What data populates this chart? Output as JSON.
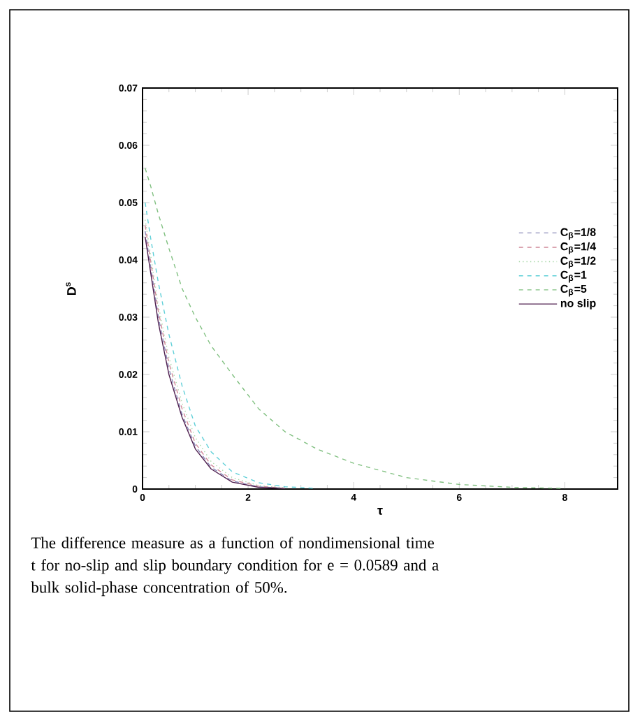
{
  "chart_data": {
    "type": "line",
    "xlabel": "τ",
    "ylabel": "D$^{s}$",
    "x": [
      0.05,
      0.15,
      0.3,
      0.5,
      0.75,
      1.0,
      1.3,
      1.7,
      2.2,
      2.7,
      3.3,
      4.0,
      5.0,
      6.0,
      7.0,
      8.0
    ],
    "series": [
      {
        "name": "C$_{β}$=1/8",
        "color": "#8a8ab8",
        "line_style": "dashed",
        "values": [
          0.045,
          0.039,
          0.03,
          0.021,
          0.013,
          0.0075,
          0.0038,
          0.0014,
          0.0004,
          0.0001,
          null,
          null,
          null,
          null,
          null,
          null
        ]
      },
      {
        "name": "C$_{β}$=1/4",
        "color": "#d08898",
        "line_style": "dashed",
        "values": [
          0.046,
          0.04,
          0.031,
          0.022,
          0.014,
          0.008,
          0.0042,
          0.0016,
          0.0005,
          0.0001,
          null,
          null,
          null,
          null,
          null,
          null
        ]
      },
      {
        "name": "C$_{β}$=1/2",
        "color": "#a8d8a8",
        "line_style": "dotted",
        "values": [
          0.047,
          0.041,
          0.032,
          0.023,
          0.015,
          0.009,
          0.0048,
          0.002,
          0.0006,
          0.0002,
          null,
          null,
          null,
          null,
          null,
          null
        ]
      },
      {
        "name": "C$_{β}$=1",
        "color": "#60d0d8",
        "line_style": "dashed",
        "values": [
          0.05,
          0.044,
          0.036,
          0.027,
          0.018,
          0.011,
          0.0065,
          0.003,
          0.0011,
          0.0004,
          0.0001,
          null,
          null,
          null,
          null,
          null
        ]
      },
      {
        "name": "C$_{β}$=5",
        "color": "#80c080",
        "line_style": "dashed",
        "values": [
          0.056,
          0.053,
          0.048,
          0.042,
          0.035,
          0.03,
          0.025,
          0.02,
          0.014,
          0.01,
          0.007,
          0.0045,
          0.002,
          0.0008,
          0.0003,
          0.0001
        ]
      },
      {
        "name": "no slip",
        "color": "#502050",
        "line_style": "solid",
        "values": [
          0.044,
          0.038,
          0.029,
          0.02,
          0.0125,
          0.007,
          0.0035,
          0.0012,
          0.0003,
          0.0001,
          null,
          null,
          null,
          null,
          null,
          null
        ]
      }
    ],
    "xlim": [
      0,
      9
    ],
    "ylim": [
      0,
      0.07
    ],
    "xticks": [
      0,
      2,
      4,
      6,
      8
    ],
    "yticks": [
      0,
      0.01,
      0.02,
      0.03,
      0.04,
      0.05,
      0.06,
      0.07
    ],
    "legend": "right",
    "annotations": [
      "The difference measure as a function of nondimensional time t for no-slip and slip boundary condition for e = 0.0589 and a bulk solid-phase concentration of 50%."
    ]
  }
}
